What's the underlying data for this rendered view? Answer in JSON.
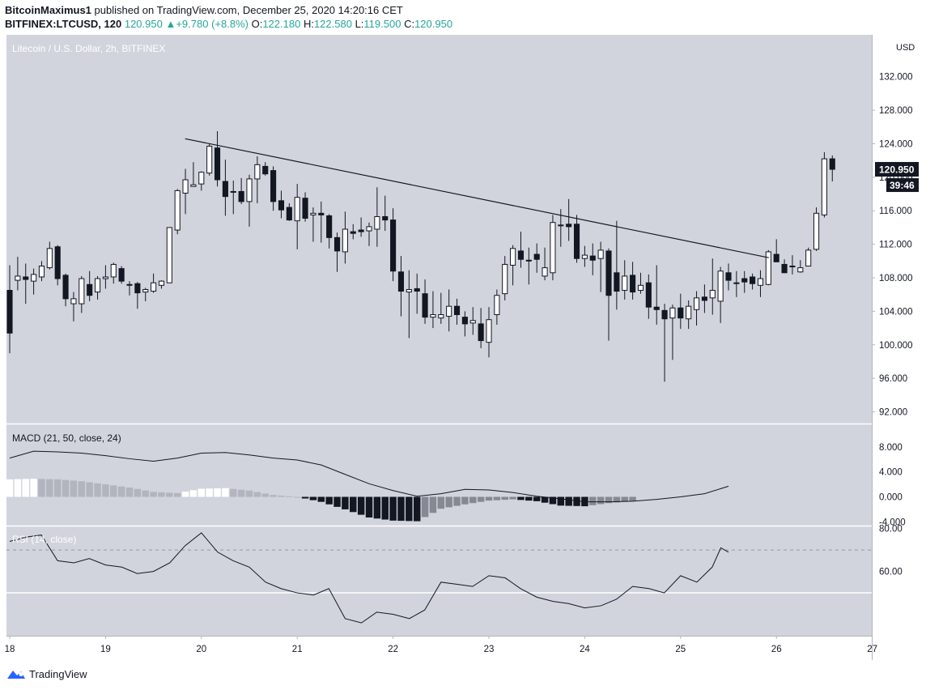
{
  "header": {
    "author": "BitcoinMaximus1",
    "published_text": " published on TradingView.com, December 25, 2020 14:20:16 CET",
    "symbol": "BITFINEX:LTCUSD, 120",
    "last": "120.950",
    "change_arrow": "▲",
    "change": "+9.780 (+8.8%)",
    "o_label": "O:",
    "o": "122.180",
    "h_label": "H:",
    "h": "122.580",
    "l_label": "L:",
    "l": "119.500",
    "c_label": "C:",
    "c": "120.950"
  },
  "footer": {
    "brand": "TradingView",
    "logo_icon": "tradingview-logo-icon"
  },
  "colors": {
    "background": "#d1d4dc",
    "bull_body": "#ffffff",
    "bear_body": "#131722",
    "wick": "#131722",
    "hist_dark": "#131722",
    "hist_gray": "#868993",
    "hist_light": "#b2b5be"
  },
  "chart_data": [
    {
      "type": "candlestick",
      "title": "Litecoin / U.S. Dollar, 2h, BITFINEX",
      "currency": "USD",
      "ylim": [
        90.6,
        137
      ],
      "y_ticks": [
        "128.000",
        "124.000",
        "120.000",
        "116.000",
        "112.000",
        "108.000",
        "104.000",
        "100.000",
        "96.000",
        "92.000"
      ],
      "top_partial_tick": "132.000",
      "last_price": "120.950",
      "countdown": "39:46",
      "x_ticks": [
        {
          "label": "18",
          "day": 18
        },
        {
          "label": "19",
          "day": 19
        },
        {
          "label": "20",
          "day": 20
        },
        {
          "label": "21",
          "day": 21
        },
        {
          "label": "22",
          "day": 22
        },
        {
          "label": "23",
          "day": 23
        },
        {
          "label": "24",
          "day": 24
        },
        {
          "label": "25",
          "day": 25
        },
        {
          "label": "26",
          "day": 26
        },
        {
          "label": "27",
          "day": 27
        }
      ],
      "candles": [
        [
          106.5,
          109.5,
          99,
          101.4
        ],
        [
          107.7,
          110.5,
          106.5,
          108.2
        ],
        [
          108.1,
          109.7,
          104.9,
          107.8
        ],
        [
          107.6,
          109.1,
          106,
          108.4
        ],
        [
          108.1,
          110,
          107.6,
          109.4
        ],
        [
          109.2,
          112.3,
          109,
          111.5
        ],
        [
          111.7,
          111.9,
          107.1,
          107.9
        ],
        [
          108.3,
          108.5,
          104.6,
          105.5
        ],
        [
          104.9,
          106.3,
          102.8,
          105.5
        ],
        [
          104.9,
          108.2,
          103.8,
          107.9
        ],
        [
          107.2,
          108.8,
          105.2,
          105.9
        ],
        [
          106.3,
          108.2,
          105.4,
          107.9
        ],
        [
          107.9,
          109.5,
          106.7,
          108.1
        ],
        [
          108.1,
          109.8,
          107.3,
          109.6
        ],
        [
          109.1,
          109.4,
          107.3,
          107.6
        ],
        [
          107.2,
          107.6,
          105.9,
          107.2
        ],
        [
          107.3,
          107.5,
          104.3,
          106.2
        ],
        [
          106.3,
          106.8,
          105.2,
          106.6
        ],
        [
          106.4,
          108.5,
          106.2,
          107.4
        ],
        [
          107.1,
          107.7,
          106.7,
          107.6
        ],
        [
          107.4,
          114,
          107.4,
          114
        ],
        [
          113.7,
          118.6,
          113.2,
          118.4
        ],
        [
          118.1,
          121,
          115.6,
          119.7
        ],
        [
          118.9,
          121.8,
          118.9,
          119.1
        ],
        [
          119.2,
          120.7,
          118.4,
          120.6
        ],
        [
          120.5,
          124,
          120.2,
          123.7
        ],
        [
          123.5,
          125.5,
          118.9,
          119.7
        ],
        [
          119.5,
          122.1,
          115.4,
          117.7
        ],
        [
          118.3,
          119.6,
          115.6,
          118.3
        ],
        [
          118.3,
          119.9,
          116.8,
          117.1
        ],
        [
          117.1,
          120.3,
          114.1,
          119.8
        ],
        [
          119.8,
          122.5,
          116.9,
          121.5
        ],
        [
          121.3,
          121.8,
          120.2,
          120.4
        ],
        [
          120.8,
          121.3,
          116,
          117.1
        ],
        [
          117.2,
          118.4,
          115.1,
          116.1
        ],
        [
          116.4,
          116.9,
          114.8,
          114.9
        ],
        [
          114.8,
          119.2,
          111.4,
          117.6
        ],
        [
          117.5,
          118.2,
          114.7,
          115.1
        ],
        [
          115.5,
          116.4,
          112.3,
          115.7
        ],
        [
          115.7,
          117.1,
          112.2,
          115.5
        ],
        [
          115.4,
          115.6,
          111.5,
          112.8
        ],
        [
          112.8,
          113.4,
          108.7,
          111.2
        ],
        [
          111.1,
          115.9,
          109.7,
          113.8
        ],
        [
          113.5,
          114.4,
          112.6,
          113.3
        ],
        [
          113.7,
          115.2,
          112.9,
          113.5
        ],
        [
          113.6,
          114.6,
          111.8,
          114.1
        ],
        [
          113.8,
          118.8,
          111.7,
          115.3
        ],
        [
          115.3,
          117.8,
          113.6,
          114.9
        ],
        [
          114.9,
          116.3,
          107.6,
          108.8
        ],
        [
          108.7,
          110.6,
          103.4,
          106.4
        ],
        [
          106.3,
          108.9,
          100.8,
          106.6
        ],
        [
          106.7,
          108.5,
          103.7,
          106.4
        ],
        [
          106.1,
          107.8,
          102.5,
          103.3
        ],
        [
          103.3,
          106.4,
          102,
          103.6
        ],
        [
          103.2,
          106.2,
          102.5,
          103.6
        ],
        [
          103.4,
          106.6,
          101.6,
          104.6
        ],
        [
          104.6,
          105.5,
          102.4,
          103.6
        ],
        [
          103.3,
          104,
          101,
          102.5
        ],
        [
          102.6,
          104.5,
          101.2,
          102.9
        ],
        [
          102.5,
          104.4,
          99.6,
          100.5
        ],
        [
          100.3,
          104.5,
          98.5,
          103
        ],
        [
          103.6,
          106.6,
          102.4,
          105.9
        ],
        [
          106.1,
          110.6,
          105.3,
          109.6
        ],
        [
          109.5,
          111.9,
          107.1,
          111.5
        ],
        [
          111.2,
          113.5,
          109.2,
          110.2
        ],
        [
          110.1,
          111.6,
          107.2,
          110
        ],
        [
          110.8,
          112.1,
          108.6,
          110.2
        ],
        [
          108.2,
          111.6,
          107.7,
          109.2
        ],
        [
          108.6,
          115.5,
          107.7,
          114.6
        ],
        [
          114.2,
          116.2,
          111.7,
          114.3
        ],
        [
          114.4,
          117.4,
          112.4,
          114.1
        ],
        [
          114.4,
          115.5,
          109.8,
          110.3
        ],
        [
          110.3,
          111.8,
          109.3,
          110.7
        ],
        [
          110.6,
          112.1,
          108.3,
          110.1
        ],
        [
          110.3,
          112.3,
          106.3,
          111.3
        ],
        [
          111.2,
          111.5,
          100.5,
          105.9
        ],
        [
          108.6,
          114.8,
          104.2,
          106.4
        ],
        [
          106.5,
          110.1,
          105.4,
          108.2
        ],
        [
          108.3,
          109.9,
          105.4,
          106.3
        ],
        [
          106.5,
          108.6,
          106.1,
          107.1
        ],
        [
          107.4,
          108.4,
          103.1,
          104.5
        ],
        [
          104.5,
          109.5,
          102.4,
          104.2
        ],
        [
          104.1,
          104.9,
          95.6,
          103.1
        ],
        [
          103.2,
          104.8,
          98.2,
          104.4
        ],
        [
          104.4,
          106.1,
          101.9,
          103.2
        ],
        [
          103.1,
          105.3,
          101.9,
          104.6
        ],
        [
          104.2,
          106.4,
          102.3,
          105.6
        ],
        [
          105.7,
          107.2,
          103.8,
          105.3
        ],
        [
          105.6,
          110.3,
          103.6,
          106.5
        ],
        [
          105.2,
          109.3,
          102.6,
          108.8
        ],
        [
          108.6,
          109.7,
          106.5,
          107.7
        ],
        [
          107.4,
          108.8,
          105.7,
          107.4
        ],
        [
          107.9,
          108.8,
          106.2,
          107.5
        ],
        [
          108.1,
          108.5,
          106.6,
          107.3
        ],
        [
          107.1,
          108.9,
          105.7,
          107.9
        ],
        [
          107.2,
          111.3,
          107.1,
          111.1
        ],
        [
          110.8,
          112.6,
          109.9,
          109.9
        ],
        [
          109.6,
          110.2,
          108.6,
          108.6
        ],
        [
          109.4,
          110.7,
          108.4,
          109.4
        ],
        [
          108.7,
          110.1,
          108.6,
          109.2
        ],
        [
          109.4,
          111.6,
          109.4,
          111.3
        ],
        [
          111.4,
          116.4,
          111.2,
          115.7
        ],
        [
          115.5,
          123,
          115.2,
          122.2
        ],
        [
          122.2,
          122.6,
          119.5,
          120.95
        ]
      ],
      "trendline": {
        "start": [
          19.83,
          124.6
        ],
        "end": [
          25.92,
          110.4
        ]
      }
    },
    {
      "type": "bar-line",
      "title": "MACD (21, 50, close, 24)",
      "ylim": [
        -4.6,
        11.6
      ],
      "y_ticks": [
        "8.000",
        "4.000",
        "0.000",
        "-4.000"
      ],
      "x": [
        18,
        18.25,
        18.5,
        18.75,
        19,
        19.25,
        19.5,
        19.75,
        20,
        20.25,
        20.5,
        20.75,
        21,
        21.25,
        21.5,
        21.75,
        22,
        22.25,
        22.5,
        22.75,
        23,
        23.25,
        23.5,
        23.75,
        24,
        24.25,
        24.5,
        24.75,
        25,
        25.25,
        25.5
      ],
      "macd_line": [
        6.2,
        7.3,
        7.2,
        7.0,
        6.6,
        6.1,
        5.7,
        6.2,
        7.0,
        7.1,
        6.7,
        6.2,
        5.9,
        5.1,
        3.6,
        2.1,
        1.0,
        0.1,
        0.5,
        1.2,
        1.1,
        0.7,
        0.1,
        -0.3,
        -0.8,
        -0.8,
        -0.7,
        -0.4,
        0.0,
        0.5,
        1.7
      ],
      "histogram": [
        2.8,
        2.9,
        2.8,
        2.5,
        2.0,
        1.5,
        0.8,
        0.6,
        1.3,
        1.4,
        1.0,
        0.3,
        0.0,
        -0.8,
        -2.0,
        -3.3,
        -3.8,
        -3.9,
        -1.9,
        -1.2,
        -0.6,
        -0.4,
        -0.7,
        -1.4,
        -1.5,
        -1.0,
        -0.7,
        -0.4,
        0.0,
        0.5,
        1.6
      ]
    },
    {
      "type": "line",
      "title": "RSI (14, close)",
      "ylim": [
        30,
        81
      ],
      "y_ticks": [
        "80.00",
        "60.00"
      ],
      "band_lines": [
        70,
        30
      ],
      "mid_line": 50,
      "x": [
        18,
        18.17,
        18.33,
        18.5,
        18.67,
        18.83,
        19,
        19.17,
        19.33,
        19.5,
        19.67,
        19.83,
        20,
        20.17,
        20.33,
        20.5,
        20.67,
        20.83,
        21,
        21.17,
        21.33,
        21.5,
        21.67,
        21.83,
        22,
        22.17,
        22.33,
        22.5,
        22.67,
        22.83,
        23,
        23.17,
        23.33,
        23.5,
        23.67,
        23.83,
        24,
        24.17,
        24.33,
        24.5,
        24.67,
        24.83,
        25,
        25.17,
        25.33,
        25.42,
        25.5
      ],
      "values": [
        74,
        76,
        77,
        65,
        64,
        66,
        63,
        62,
        59,
        60,
        64,
        72,
        78,
        69,
        65,
        62,
        55,
        52,
        50,
        49,
        52,
        38,
        36,
        41,
        40,
        38,
        42,
        55,
        54,
        53,
        58,
        57,
        52,
        48,
        46,
        45,
        43,
        44,
        47,
        53,
        52,
        50,
        58,
        55,
        62,
        71,
        69
      ]
    }
  ]
}
